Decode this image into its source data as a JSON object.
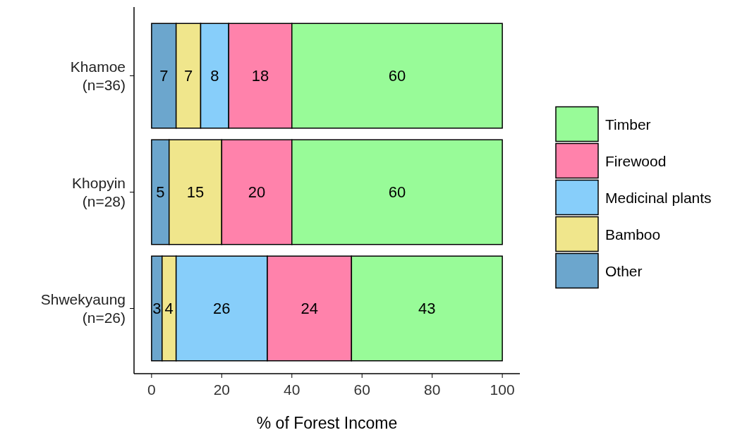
{
  "chart_data": {
    "type": "bar",
    "orientation": "horizontal",
    "stacked": true,
    "xlabel": "% of Forest Income",
    "categories": [
      "Khamoe\n(n=36)",
      "Khopyin\n(n=28)",
      "Shwekyaung\n(n=26)"
    ],
    "series": [
      {
        "name": "Other",
        "color": "#6ca6cd",
        "values": [
          7,
          5,
          3
        ]
      },
      {
        "name": "Bamboo",
        "color": "#f0e68c",
        "values": [
          7,
          15,
          4
        ]
      },
      {
        "name": "Medicinal plants",
        "color": "#87cefa",
        "values": [
          8,
          null,
          26
        ]
      },
      {
        "name": "Firewood",
        "color": "#ff82ab",
        "values": [
          18,
          20,
          24
        ]
      },
      {
        "name": "Timber",
        "color": "#98fb98",
        "values": [
          60,
          60,
          43
        ]
      }
    ],
    "xlim": [
      -5,
      105
    ],
    "xticks": [
      0,
      20,
      40,
      60,
      80,
      100
    ],
    "data_labels": true,
    "legend": "right",
    "grid": false
  }
}
